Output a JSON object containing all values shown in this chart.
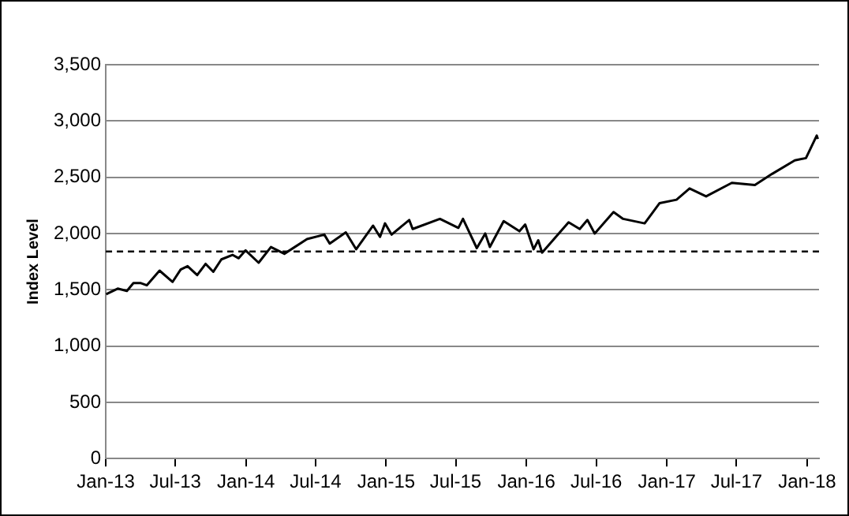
{
  "chart_data": {
    "type": "line",
    "ylabel": "Index Level",
    "grid": "y",
    "legend": false,
    "marker": "none",
    "line_style": "solid",
    "xlim": [
      "2013-01-01",
      "2018-02-01"
    ],
    "xticks": [
      {
        "value": "2013-01-01",
        "label": "Jan-13"
      },
      {
        "value": "2013-07-01",
        "label": "Jul-13"
      },
      {
        "value": "2014-01-01",
        "label": "Jan-14"
      },
      {
        "value": "2014-07-01",
        "label": "Jul-14"
      },
      {
        "value": "2015-01-01",
        "label": "Jan-15"
      },
      {
        "value": "2015-07-01",
        "label": "Jul-15"
      },
      {
        "value": "2016-01-01",
        "label": "Jan-16"
      },
      {
        "value": "2016-07-01",
        "label": "Jul-16"
      },
      {
        "value": "2017-01-01",
        "label": "Jan-17"
      },
      {
        "value": "2017-07-01",
        "label": "Jul-17"
      },
      {
        "value": "2018-01-01",
        "label": "Jan-18"
      }
    ],
    "ylim": [
      0,
      3500
    ],
    "yticks": [
      {
        "value": 0,
        "label": "0"
      },
      {
        "value": 500,
        "label": "500"
      },
      {
        "value": 1000,
        "label": "1,000"
      },
      {
        "value": 1500,
        "label": "1,500"
      },
      {
        "value": 2000,
        "label": "2,000"
      },
      {
        "value": 2500,
        "label": "2,500"
      },
      {
        "value": 3000,
        "label": "3,000"
      },
      {
        "value": 3500,
        "label": "3,500"
      }
    ],
    "ref_lines": [
      {
        "axis": "y",
        "value": 1840,
        "color": "#000000",
        "line_style": "dashed"
      }
    ],
    "x": [
      "2013-01-02",
      "2013-02-01",
      "2013-02-25",
      "2013-03-14",
      "2013-04-01",
      "2013-04-18",
      "2013-05-21",
      "2013-06-24",
      "2013-07-15",
      "2013-08-02",
      "2013-08-27",
      "2013-09-18",
      "2013-10-08",
      "2013-10-29",
      "2013-11-27",
      "2013-12-13",
      "2013-12-31",
      "2014-02-03",
      "2014-03-07",
      "2014-04-11",
      "2014-06-09",
      "2014-07-24",
      "2014-08-07",
      "2014-09-18",
      "2014-10-15",
      "2014-11-28",
      "2014-12-16",
      "2014-12-29",
      "2015-01-15",
      "2015-03-02",
      "2015-03-11",
      "2015-05-21",
      "2015-07-08",
      "2015-07-20",
      "2015-08-25",
      "2015-09-16",
      "2015-09-28",
      "2015-11-03",
      "2015-12-14",
      "2015-12-29",
      "2016-01-20",
      "2016-02-01",
      "2016-02-11",
      "2016-04-20",
      "2016-05-19",
      "2016-06-08",
      "2016-06-27",
      "2016-08-15",
      "2016-09-09",
      "2016-11-04",
      "2016-12-13",
      "2017-01-26",
      "2017-03-01",
      "2017-04-13",
      "2017-06-19",
      "2017-08-18",
      "2017-10-02",
      "2017-11-30",
      "2017-12-29",
      "2018-01-26",
      "2018-01-29"
    ],
    "series": [
      {
        "color": "#000000",
        "values": [
          1460,
          1510,
          1490,
          1560,
          1560,
          1540,
          1670,
          1570,
          1680,
          1710,
          1630,
          1730,
          1660,
          1770,
          1810,
          1780,
          1850,
          1740,
          1880,
          1820,
          1950,
          1990,
          1910,
          2010,
          1860,
          2070,
          1970,
          2090,
          1990,
          2120,
          2040,
          2130,
          2050,
          2130,
          1870,
          2000,
          1880,
          2110,
          2020,
          2080,
          1860,
          1940,
          1830,
          2100,
          2040,
          2120,
          2000,
          2190,
          2130,
          2090,
          2270,
          2300,
          2400,
          2330,
          2450,
          2430,
          2530,
          2650,
          2670,
          2870,
          2840
        ]
      }
    ]
  }
}
